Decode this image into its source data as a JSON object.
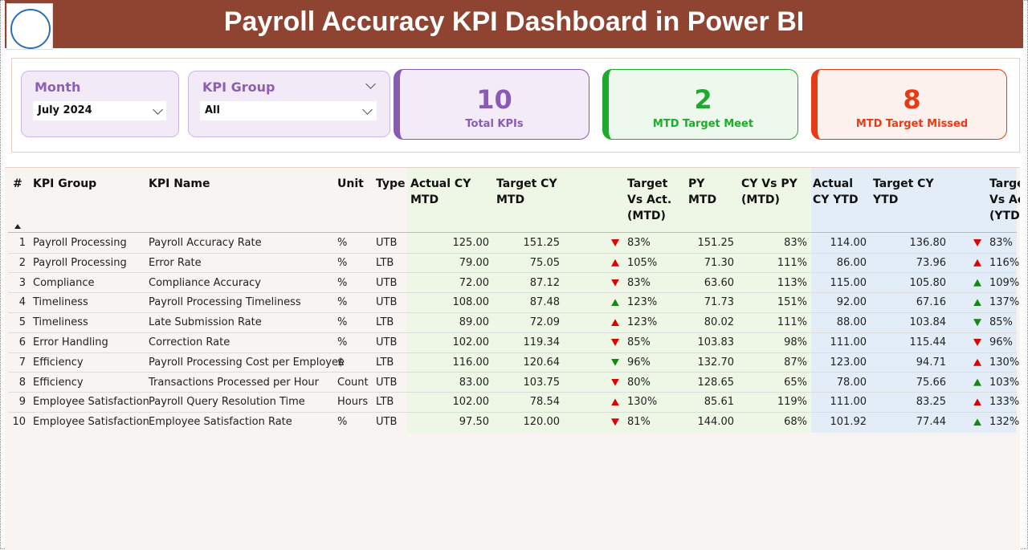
{
  "header": {
    "title": "Payroll Accuracy KPI Dashboard in Power BI"
  },
  "filters": [
    {
      "label": "Month",
      "value": "July 2024"
    },
    {
      "label": "KPI Group",
      "value": "All"
    }
  ],
  "cards": [
    {
      "value": "10",
      "label": "Total KPIs",
      "color": "#8a5bb5"
    },
    {
      "value": "2",
      "label": "MTD Target Meet",
      "color": "#1faa2c"
    },
    {
      "value": "8",
      "label": "MTD Target Missed",
      "color": "#e63c16"
    }
  ],
  "table": {
    "columns": [
      "#",
      "KPI Group",
      "KPI Name",
      "Unit",
      "Type",
      "Actual CY MTD",
      "Target CY MTD",
      "Target Vs Act. (MTD)",
      "PY MTD",
      "CY Vs PY (MTD)",
      "Actual CY YTD",
      "Target CY YTD",
      "Target Vs Act. (YTD)"
    ],
    "rows": [
      {
        "no": "1",
        "group": "Payroll Processing",
        "name": "Payroll Accuracy Rate",
        "unit": "%",
        "type": "UTB",
        "actual_mtd": "125.00",
        "target_mtd": "151.25",
        "mtd_arrow": "down",
        "mtd_arrow_color": "#e00000",
        "tva_mtd": "83%",
        "py_mtd": "151.25",
        "cy_vs_py": "83%",
        "actual_ytd": "114.00",
        "target_ytd": "136.80",
        "ytd_arrow": "down",
        "ytd_arrow_color": "#e00000",
        "tva_ytd": "83%"
      },
      {
        "no": "2",
        "group": "Payroll Processing",
        "name": "Error Rate",
        "unit": "%",
        "type": "LTB",
        "actual_mtd": "79.00",
        "target_mtd": "75.05",
        "mtd_arrow": "up",
        "mtd_arrow_color": "#e00000",
        "tva_mtd": "105%",
        "py_mtd": "71.30",
        "cy_vs_py": "111%",
        "actual_ytd": "86.00",
        "target_ytd": "73.96",
        "ytd_arrow": "up",
        "ytd_arrow_color": "#e00000",
        "tva_ytd": "116%"
      },
      {
        "no": "3",
        "group": "Compliance",
        "name": "Compliance Accuracy",
        "unit": "%",
        "type": "UTB",
        "actual_mtd": "72.00",
        "target_mtd": "87.12",
        "mtd_arrow": "down",
        "mtd_arrow_color": "#e00000",
        "tva_mtd": "83%",
        "py_mtd": "63.60",
        "cy_vs_py": "113%",
        "actual_ytd": "115.00",
        "target_ytd": "105.80",
        "ytd_arrow": "up",
        "ytd_arrow_color": "#118a11",
        "tva_ytd": "109%"
      },
      {
        "no": "4",
        "group": "Timeliness",
        "name": "Payroll Processing Timeliness",
        "unit": "%",
        "type": "UTB",
        "actual_mtd": "108.00",
        "target_mtd": "87.48",
        "mtd_arrow": "up",
        "mtd_arrow_color": "#118a11",
        "tva_mtd": "123%",
        "py_mtd": "71.73",
        "cy_vs_py": "151%",
        "actual_ytd": "92.00",
        "target_ytd": "67.16",
        "ytd_arrow": "up",
        "ytd_arrow_color": "#118a11",
        "tva_ytd": "137%"
      },
      {
        "no": "5",
        "group": "Timeliness",
        "name": "Late Submission Rate",
        "unit": "%",
        "type": "LTB",
        "actual_mtd": "89.00",
        "target_mtd": "72.09",
        "mtd_arrow": "up",
        "mtd_arrow_color": "#e00000",
        "tva_mtd": "123%",
        "py_mtd": "80.02",
        "cy_vs_py": "111%",
        "actual_ytd": "88.00",
        "target_ytd": "103.84",
        "ytd_arrow": "down",
        "ytd_arrow_color": "#118a11",
        "tva_ytd": "85%"
      },
      {
        "no": "6",
        "group": "Error Handling",
        "name": "Correction Rate",
        "unit": "%",
        "type": "UTB",
        "actual_mtd": "102.00",
        "target_mtd": "119.34",
        "mtd_arrow": "down",
        "mtd_arrow_color": "#e00000",
        "tva_mtd": "85%",
        "py_mtd": "103.83",
        "cy_vs_py": "98%",
        "actual_ytd": "111.00",
        "target_ytd": "115.44",
        "ytd_arrow": "down",
        "ytd_arrow_color": "#e00000",
        "tva_ytd": "96%"
      },
      {
        "no": "7",
        "group": "Efficiency",
        "name": "Payroll Processing Cost per Employee",
        "unit": "$",
        "type": "LTB",
        "actual_mtd": "116.00",
        "target_mtd": "120.64",
        "mtd_arrow": "down",
        "mtd_arrow_color": "#118a11",
        "tva_mtd": "96%",
        "py_mtd": "132.70",
        "cy_vs_py": "87%",
        "actual_ytd": "123.00",
        "target_ytd": "94.71",
        "ytd_arrow": "up",
        "ytd_arrow_color": "#e00000",
        "tva_ytd": "130%"
      },
      {
        "no": "8",
        "group": "Efficiency",
        "name": "Transactions Processed per Hour",
        "unit": "Count",
        "type": "UTB",
        "actual_mtd": "83.00",
        "target_mtd": "103.75",
        "mtd_arrow": "down",
        "mtd_arrow_color": "#e00000",
        "tva_mtd": "80%",
        "py_mtd": "128.65",
        "cy_vs_py": "65%",
        "actual_ytd": "78.00",
        "target_ytd": "75.66",
        "ytd_arrow": "up",
        "ytd_arrow_color": "#118a11",
        "tva_ytd": "103%"
      },
      {
        "no": "9",
        "group": "Employee Satisfaction",
        "name": "Payroll Query Resolution Time",
        "unit": "Hours",
        "type": "LTB",
        "actual_mtd": "102.00",
        "target_mtd": "78.54",
        "mtd_arrow": "up",
        "mtd_arrow_color": "#e00000",
        "tva_mtd": "130%",
        "py_mtd": "85.61",
        "cy_vs_py": "119%",
        "actual_ytd": "111.00",
        "target_ytd": "83.25",
        "ytd_arrow": "up",
        "ytd_arrow_color": "#e00000",
        "tva_ytd": "133%"
      },
      {
        "no": "10",
        "group": "Employee Satisfaction",
        "name": "Employee Satisfaction Rate",
        "unit": "%",
        "type": "UTB",
        "actual_mtd": "97.50",
        "target_mtd": "120.00",
        "mtd_arrow": "down",
        "mtd_arrow_color": "#e00000",
        "tva_mtd": "81%",
        "py_mtd": "144.00",
        "cy_vs_py": "68%",
        "actual_ytd": "101.92",
        "target_ytd": "77.44",
        "ytd_arrow": "up",
        "ytd_arrow_color": "#118a11",
        "tva_ytd": "132%"
      }
    ]
  }
}
